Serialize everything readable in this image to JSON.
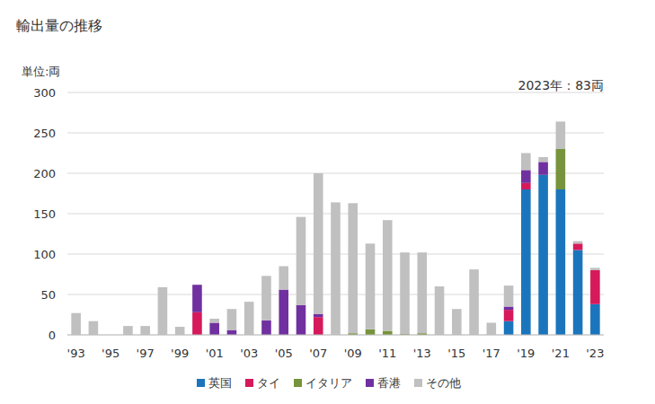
{
  "chart_data": {
    "type": "bar",
    "title": "輸出量の推移",
    "y_label": "単位:両",
    "annotation": "2023年：83両",
    "stacked": true,
    "grid": true,
    "legend": "bottom",
    "categories": [
      "'93",
      null,
      "'95",
      null,
      "'97",
      null,
      "'99",
      null,
      "'01",
      null,
      "'03",
      null,
      "'05",
      null,
      "'07",
      null,
      "'09",
      null,
      "'11",
      null,
      "'13",
      null,
      "'15",
      null,
      "'17",
      null,
      "'19",
      null,
      "'21",
      null,
      "'23"
    ],
    "ylim": [
      0,
      300
    ],
    "yticks": [
      0,
      50,
      100,
      150,
      200,
      250,
      300
    ],
    "series": [
      {
        "name": "英国",
        "color": "#1a75bc",
        "values": [
          0,
          0,
          0,
          0,
          0,
          0,
          0,
          0,
          0,
          0,
          0,
          0,
          0,
          0,
          0,
          0,
          0,
          0,
          0,
          0,
          0,
          0,
          0,
          0,
          0,
          17,
          180,
          198,
          180,
          105,
          38
        ]
      },
      {
        "name": "タイ",
        "color": "#d6195b",
        "values": [
          0,
          0,
          0,
          0,
          0,
          0,
          0,
          28,
          0,
          0,
          0,
          0,
          0,
          0,
          22,
          0,
          0,
          0,
          0,
          0,
          0,
          0,
          0,
          0,
          0,
          14,
          8,
          0,
          0,
          8,
          42
        ]
      },
      {
        "name": "イタリア",
        "color": "#77933c",
        "values": [
          0,
          0,
          0,
          0,
          0,
          0,
          0,
          0,
          0,
          0,
          0,
          0,
          0,
          0,
          0,
          0,
          2,
          7,
          5,
          1,
          2,
          0,
          0,
          0,
          0,
          0,
          0,
          0,
          50,
          0,
          0
        ]
      },
      {
        "name": "香港",
        "color": "#7030a0",
        "values": [
          0,
          0,
          0,
          0,
          0,
          0,
          0,
          34,
          15,
          6,
          0,
          18,
          56,
          37,
          4,
          0,
          0,
          0,
          0,
          0,
          0,
          0,
          0,
          0,
          0,
          4,
          16,
          16,
          0,
          0,
          0
        ]
      },
      {
        "name": "その他",
        "color": "#c0c0c0",
        "values": [
          27,
          17,
          0,
          11,
          11,
          59,
          10,
          0,
          5,
          26,
          41,
          55,
          29,
          109,
          174,
          164,
          161,
          106,
          137,
          101,
          100,
          60,
          32,
          81,
          15,
          26,
          21,
          6,
          34,
          3,
          3
        ]
      }
    ]
  }
}
